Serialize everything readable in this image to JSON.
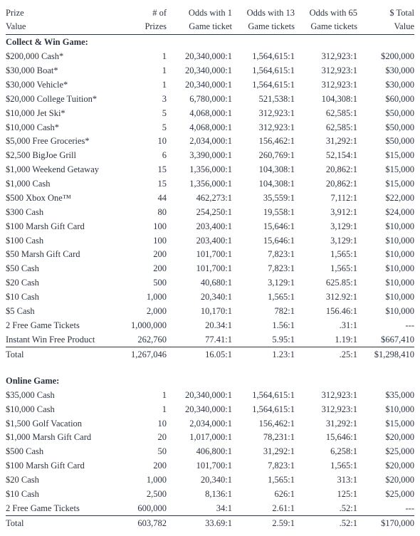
{
  "header": {
    "prize_l1": "Prize",
    "prize_l2": "Value",
    "num_l1": "# of",
    "num_l2": "Prizes",
    "odds1_l1": "Odds with 1",
    "odds1_l2": "Game ticket",
    "odds13_l1": "Odds with 13",
    "odds13_l2": "Game tickets",
    "odds65_l1": "Odds with 65",
    "odds65_l2": "Game tickets",
    "total_l1": "$ Total",
    "total_l2": "Value"
  },
  "sections": [
    {
      "title": "Collect & Win Game:",
      "rows": [
        {
          "prize": "$200,000 Cash*",
          "num": "1",
          "o1": "20,340,000:1",
          "o13": "1,564,615:1",
          "o65": "312,923:1",
          "total": "$200,000"
        },
        {
          "prize": "$30,000 Boat*",
          "num": "1",
          "o1": "20,340,000:1",
          "o13": "1,564,615:1",
          "o65": "312,923:1",
          "total": "$30,000"
        },
        {
          "prize": "$30,000 Vehicle*",
          "num": "1",
          "o1": "20,340,000:1",
          "o13": "1,564,615:1",
          "o65": "312,923:1",
          "total": "$30,000"
        },
        {
          "prize": "$20,000 College Tuition*",
          "num": "3",
          "o1": "6,780,000:1",
          "o13": "521,538:1",
          "o65": "104,308:1",
          "total": "$60,000"
        },
        {
          "prize": "$10,000 Jet Ski*",
          "num": "5",
          "o1": "4,068,000:1",
          "o13": "312,923:1",
          "o65": "62,585:1",
          "total": "$50,000"
        },
        {
          "prize": "$10,000 Cash*",
          "num": "5",
          "o1": "4,068,000:1",
          "o13": "312,923:1",
          "o65": "62,585:1",
          "total": "$50,000"
        },
        {
          "prize": "$5,000 Free Groceries*",
          "num": "10",
          "o1": "2,034,000:1",
          "o13": "156,462:1",
          "o65": "31,292:1",
          "total": "$50,000"
        },
        {
          "prize": "$2,500 BigJoe Grill",
          "num": "6",
          "o1": "3,390,000:1",
          "o13": "260,769:1",
          "o65": "52,154:1",
          "total": "$15,000"
        },
        {
          "prize": "$1,000 Weekend Getaway",
          "num": "15",
          "o1": "1,356,000:1",
          "o13": "104,308:1",
          "o65": "20,862:1",
          "total": "$15,000"
        },
        {
          "prize": "$1,000 Cash",
          "num": "15",
          "o1": "1,356,000:1",
          "o13": "104,308:1",
          "o65": "20,862:1",
          "total": "$15,000"
        },
        {
          "prize": "$500 Xbox One™",
          "num": "44",
          "o1": "462,273:1",
          "o13": "35,559:1",
          "o65": "7,112:1",
          "total": "$22,000"
        },
        {
          "prize": "$300 Cash",
          "num": "80",
          "o1": "254,250:1",
          "o13": "19,558:1",
          "o65": "3,912:1",
          "total": "$24,000"
        },
        {
          "prize": "$100 Marsh Gift Card",
          "num": "100",
          "o1": "203,400:1",
          "o13": "15,646:1",
          "o65": "3,129:1",
          "total": "$10,000"
        },
        {
          "prize": "$100 Cash",
          "num": "100",
          "o1": "203,400:1",
          "o13": "15,646:1",
          "o65": "3,129:1",
          "total": "$10,000"
        },
        {
          "prize": "$50 Marsh Gift Card",
          "num": "200",
          "o1": "101,700:1",
          "o13": "7,823:1",
          "o65": "1,565:1",
          "total": "$10,000"
        },
        {
          "prize": "$50 Cash",
          "num": "200",
          "o1": "101,700:1",
          "o13": "7,823:1",
          "o65": "1,565:1",
          "total": "$10,000"
        },
        {
          "prize": "$20 Cash",
          "num": "500",
          "o1": "40,680:1",
          "o13": "3,129:1",
          "o65": "625.85:1",
          "total": "$10,000"
        },
        {
          "prize": "$10 Cash",
          "num": "1,000",
          "o1": "20,340:1",
          "o13": "1,565:1",
          "o65": "312.92:1",
          "total": "$10,000"
        },
        {
          "prize": "$5 Cash",
          "num": "2,000",
          "o1": "10,170:1",
          "o13": "782:1",
          "o65": "156.46:1",
          "total": "$10,000"
        },
        {
          "prize": "2 Free Game Tickets",
          "num": "1,000,000",
          "o1": "20.34:1",
          "o13": "1.56:1",
          "o65": ".31:1",
          "total": "---"
        },
        {
          "prize": "Instant Win Free Product",
          "num": "262,760",
          "o1": "77.41:1",
          "o13": "5.95:1",
          "o65": "1.19:1",
          "total": "$667,410",
          "underline": true
        }
      ],
      "total": {
        "prize": "Total",
        "num": "1,267,046",
        "o1": "16.05:1",
        "o13": "1.23:1",
        "o65": ".25:1",
        "total": "$1,298,410"
      }
    },
    {
      "title": "Online Game:",
      "rows": [
        {
          "prize": "$35,000 Cash",
          "num": "1",
          "o1": "20,340,000:1",
          "o13": "1,564,615:1",
          "o65": "312,923:1",
          "total": "$35,000"
        },
        {
          "prize": "$10,000 Cash",
          "num": "1",
          "o1": "20,340,000:1",
          "o13": "1,564,615:1",
          "o65": "312,923:1",
          "total": "$10,000"
        },
        {
          "prize": "$1,500 Golf Vacation",
          "num": "10",
          "o1": "2,034,000:1",
          "o13": "156,462:1",
          "o65": "31,292:1",
          "total": "$15,000"
        },
        {
          "prize": "$1,000 Marsh Gift Card",
          "num": "20",
          "o1": "1,017,000:1",
          "o13": "78,231:1",
          "o65": "15,646:1",
          "total": "$20,000"
        },
        {
          "prize": "$500 Cash",
          "num": "50",
          "o1": "406,800:1",
          "o13": "31,292:1",
          "o65": "6,258:1",
          "total": "$25,000"
        },
        {
          "prize": "$100 Marsh Gift Card",
          "num": "200",
          "o1": "101,700:1",
          "o13": "7,823:1",
          "o65": "1,565:1",
          "total": "$20,000"
        },
        {
          "prize": "$20 Cash",
          "num": "1,000",
          "o1": "20,340:1",
          "o13": "1,565:1",
          "o65": "313:1",
          "total": "$20,000"
        },
        {
          "prize": "$10 Cash",
          "num": "2,500",
          "o1": "8,136:1",
          "o13": "626:1",
          "o65": "125:1",
          "total": "$25,000"
        },
        {
          "prize": "2 Free Game Tickets",
          "num": "600,000",
          "o1": "34:1",
          "o13": "2.61:1",
          "o65": ".52:1",
          "total": "---",
          "underline": true
        }
      ],
      "total": {
        "prize": "Total",
        "num": "603,782",
        "o1": "33.69:1",
        "o13": "2.59:1",
        "o65": ".52:1",
        "total": "$170,000"
      }
    }
  ]
}
